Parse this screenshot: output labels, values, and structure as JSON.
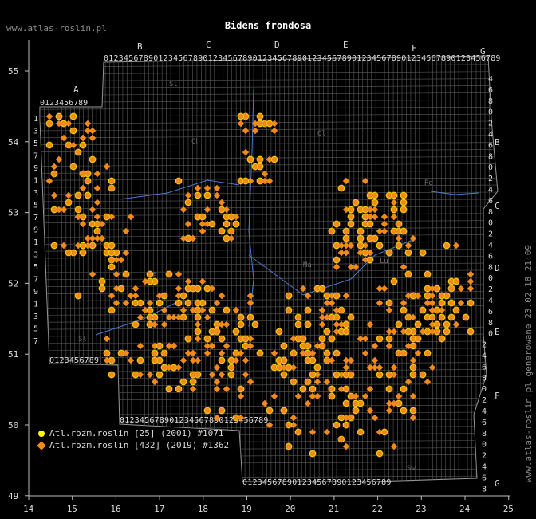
{
  "title": "Bidens frondosa",
  "site": "www.atlas-roslin.pl",
  "generated": "www.atlas-roslin.pl generowane 23.02.18 21:09",
  "legend": [
    {
      "label": "Atl.rozm.roslin [25] (2001) #1071",
      "color": "#ffff00",
      "shape": "circle"
    },
    {
      "label": "Atl.rozm.roslin [432] (2019) #1362",
      "color": "#f28a1a",
      "shape": "diamond"
    }
  ],
  "axes": {
    "x_ticks": [
      "14",
      "15",
      "16",
      "17",
      "18",
      "19",
      "20",
      "21",
      "22",
      "23",
      "24",
      "25"
    ],
    "y_ticks": [
      "55",
      "54",
      "53",
      "52",
      "51",
      "50",
      "49"
    ]
  },
  "grid_letters_top": [
    "A",
    "B",
    "C",
    "D",
    "E",
    "F",
    "G"
  ],
  "grid_letters_right": [
    "B",
    "C",
    "D",
    "E",
    "F",
    "G"
  ],
  "grid_digits": "0123456789",
  "region_labels": [
    "Sl",
    "Ch",
    "Ol",
    "Pd",
    "Ma",
    "Sl",
    "Le",
    "Lu",
    "Sw"
  ],
  "colors": {
    "grid": "#5a5a5a",
    "border": "#9a9a9a",
    "river": "#4a7ad0",
    "occ_old": "#ffff00",
    "occ_new": "#f28a1a"
  }
}
